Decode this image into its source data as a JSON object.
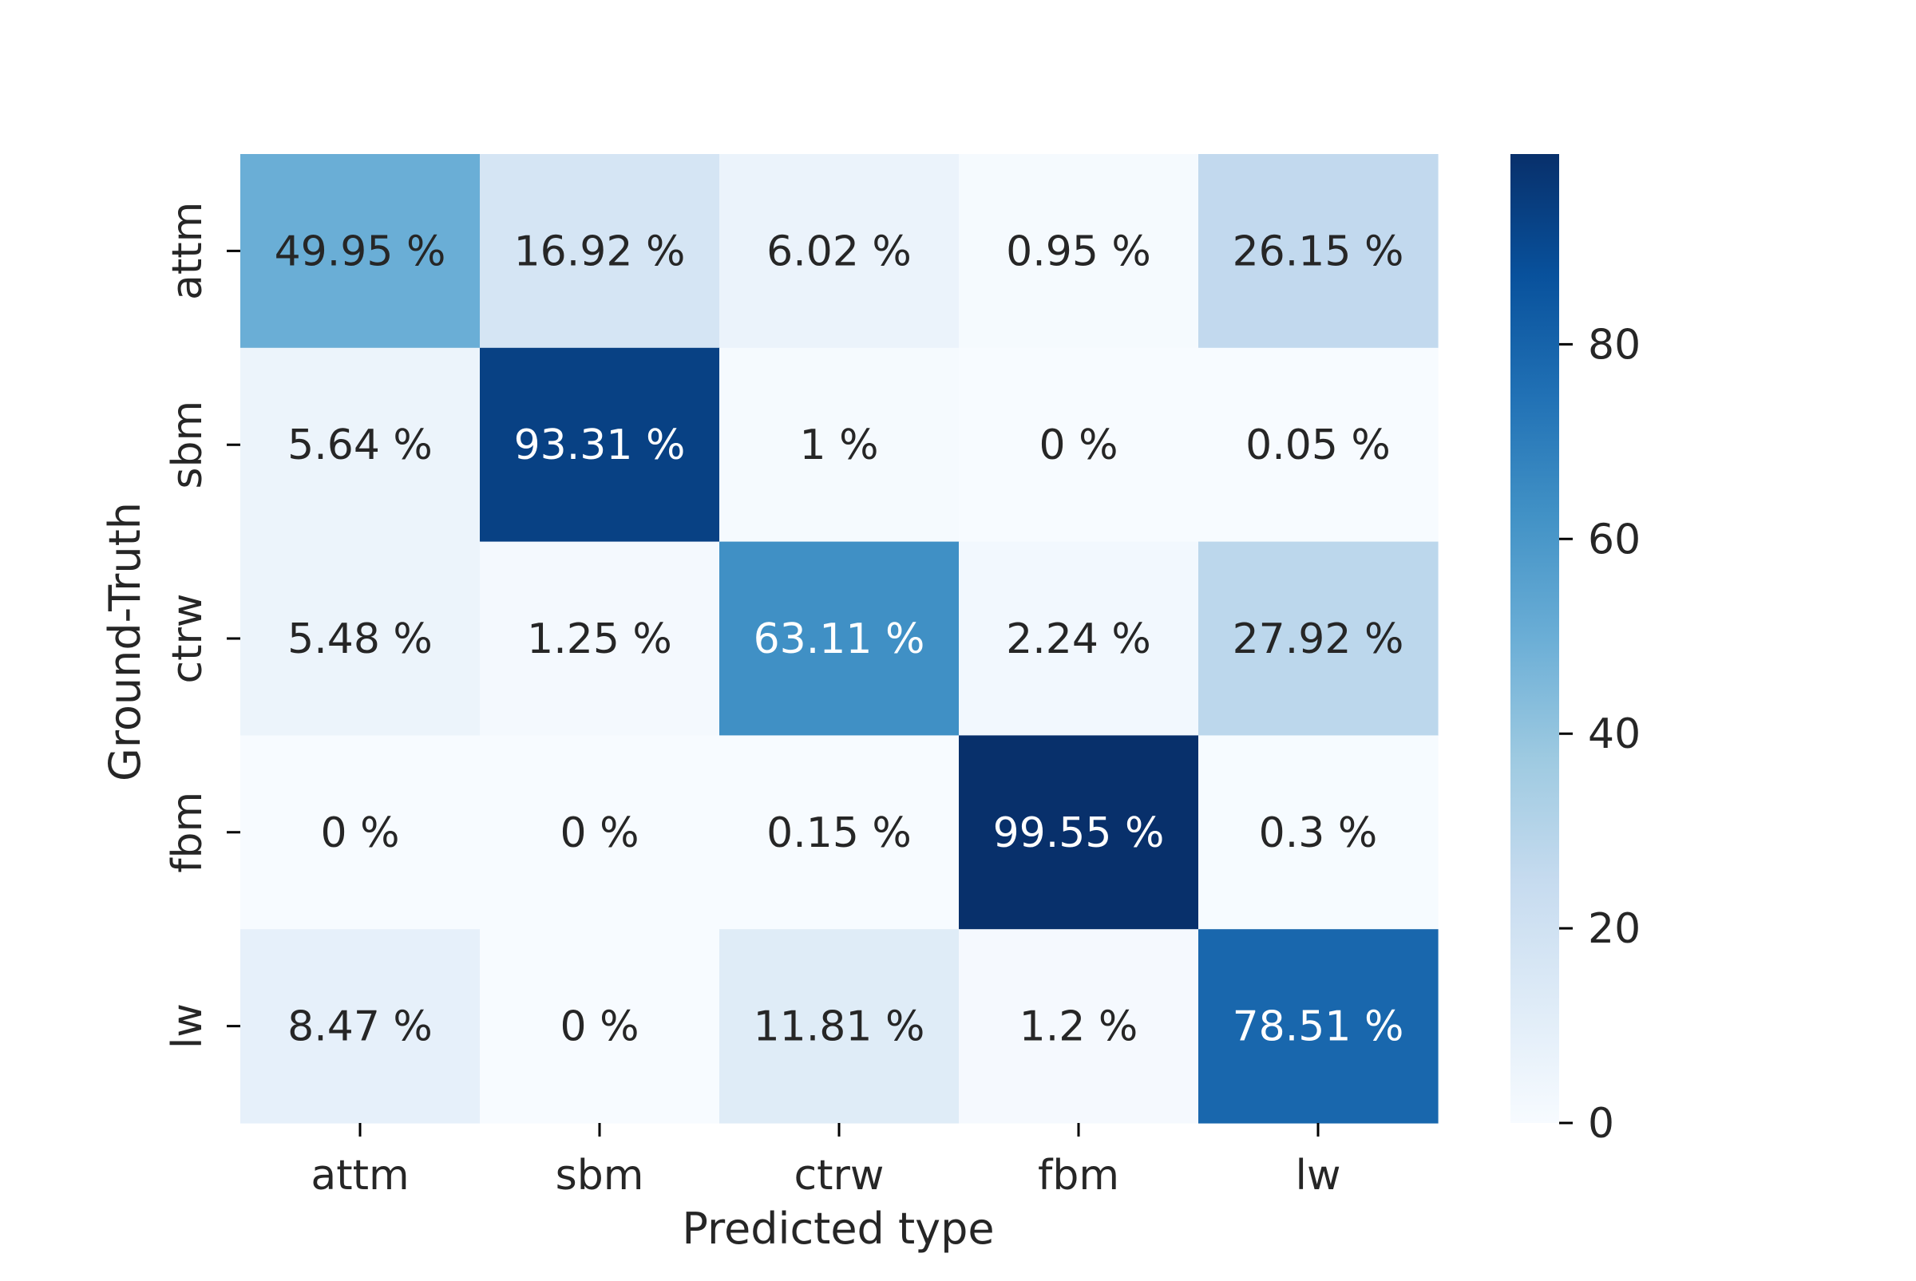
{
  "chart_data": {
    "type": "heatmap",
    "title": "",
    "xlabel": "Predicted type",
    "ylabel": "Ground-Truth",
    "x_categories": [
      "attm",
      "sbm",
      "ctrw",
      "fbm",
      "lw"
    ],
    "y_categories": [
      "attm",
      "sbm",
      "ctrw",
      "fbm",
      "lw"
    ],
    "values": [
      [
        49.95,
        16.92,
        6.02,
        0.95,
        26.15
      ],
      [
        5.64,
        93.31,
        1,
        0,
        0.05
      ],
      [
        5.48,
        1.25,
        63.11,
        2.24,
        27.92
      ],
      [
        0,
        0,
        0.15,
        99.55,
        0.3
      ],
      [
        8.47,
        0,
        11.81,
        1.2,
        78.51
      ]
    ],
    "cell_labels": [
      [
        "49.95 %",
        "16.92 %",
        "6.02 %",
        "0.95 %",
        "26.15 %"
      ],
      [
        "5.64 %",
        "93.31 %",
        "1 %",
        "0 %",
        "0.05 %"
      ],
      [
        "5.48 %",
        "1.25 %",
        "63.11 %",
        "2.24 %",
        "27.92 %"
      ],
      [
        "0 %",
        "0 %",
        "0.15 %",
        "99.55 %",
        "0.3 %"
      ],
      [
        "8.47 %",
        "0 %",
        "11.81 %",
        "1.2 %",
        "78.51 %"
      ]
    ],
    "colormap": "Blues",
    "colorbar": {
      "range": [
        0,
        99.55
      ],
      "ticks": [
        0,
        20,
        40,
        60,
        80
      ],
      "tick_labels": [
        "0",
        "20",
        "40",
        "60",
        "80"
      ],
      "placement": "right"
    },
    "colors": {
      "text_dark": "#262626",
      "text_light": "#ffffff",
      "axis": "#000000"
    }
  }
}
